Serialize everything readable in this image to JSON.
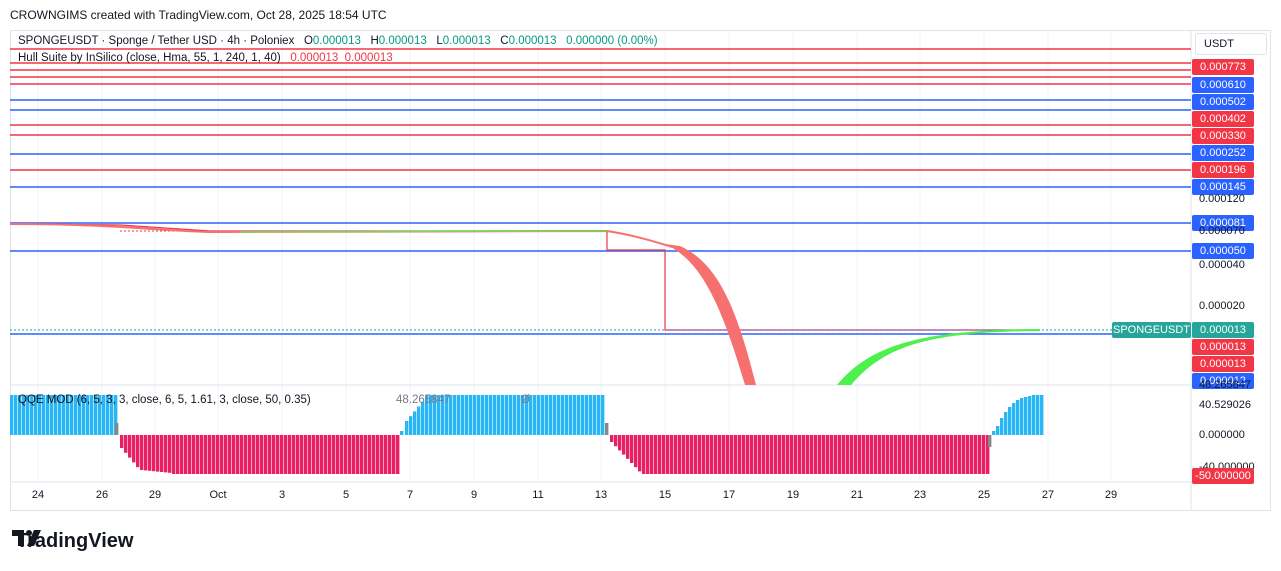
{
  "header": {
    "title": "CROWNGIMS created with TradingView.com, Oct 28, 2025 18:54 UTC"
  },
  "legend": {
    "symbol_line": "SPONGEUSDT · Sponge / Tether USD · 4h · Poloniex",
    "o_label": "O",
    "o_value": "0.000013",
    "h_label": "H",
    "h_value": "0.000013",
    "l_label": "L",
    "l_value": "0.000013",
    "c_label": "C",
    "c_value": "0.000013",
    "change": "0.000000 (0.00%)",
    "hull_line": "Hull Suite by InSilico (close, Hma, 55, 1, 240, 1, 40)",
    "hull_v1": "0.000013",
    "hull_v2": "0.000013",
    "qqe_line": "QQE MOD (6, 5, 3, 3, close, 6, 5, 1.61, 3, close, 50, 0.35)",
    "qqe_value": "48.265847",
    "qqe_zero": "Ø"
  },
  "currency_box": "USDT",
  "colors": {
    "red": "#f23645",
    "blue": "#2962ff",
    "green_hull": "#4ef04e",
    "red_hull": "#f77070",
    "cyan": "#29b6f6",
    "magenta": "#e91e63",
    "grey": "#888888",
    "teal": "#26a69a"
  },
  "price_labels": [
    {
      "text": "0.000773",
      "color": "#f23645"
    },
    {
      "text": "0.000610",
      "color": "#2962ff"
    },
    {
      "text": "0.000502",
      "color": "#2962ff"
    },
    {
      "text": "0.000402",
      "color": "#f23645"
    },
    {
      "text": "0.000330",
      "color": "#f23645"
    },
    {
      "text": "0.000252",
      "color": "#2962ff"
    },
    {
      "text": "0.000196",
      "color": "#f23645"
    },
    {
      "text": "0.000145",
      "color": "#2962ff"
    },
    {
      "text": "0.000081",
      "color": "#2962ff"
    },
    {
      "text": "0.000050",
      "color": "#2962ff"
    },
    {
      "text": "0.000013",
      "color": "#f23645"
    },
    {
      "text": "0.000013",
      "color": "#f23645"
    },
    {
      "text": "0.000012",
      "color": "#2962ff"
    }
  ],
  "price_ticks": [
    "0.000120",
    "0.000070",
    "0.000040",
    "0.000020"
  ],
  "symbol_price_label": {
    "symbol": "SPONGEUSDT",
    "price": "0.000013"
  },
  "qqe_ticks": {
    "top": "48.265847",
    "mid": "40.529026",
    "zero": "0.000000",
    "low": "-40.000000",
    "bottom_label": "-50.000000"
  },
  "x_ticks": [
    "24",
    "26",
    "29",
    "Oct",
    "3",
    "5",
    "7",
    "9",
    "11",
    "13",
    "15",
    "17",
    "19",
    "21",
    "23",
    "25",
    "27",
    "29"
  ],
  "brand": "TradingView",
  "chart_data": {
    "type": "line",
    "title": "SPONGEUSDT · Sponge / Tether USD · 4h · Poloniex",
    "y_axis": "log",
    "horizontal_levels": [
      0.000773,
      0.00061,
      0.000502,
      0.000402,
      0.00033,
      0.000252,
      0.000196,
      0.000145,
      8.1e-05,
      5e-05,
      1.3e-05,
      1.2e-05
    ],
    "series": [
      {
        "name": "SPONGEUSDT",
        "x": [
          "Sep 23",
          "Oct 13",
          "Oct 15",
          "Oct 25",
          "Oct 27"
        ],
        "values": [
          8.1e-05,
          7e-05,
          1.3e-05,
          1.3e-05,
          1.3e-05
        ]
      },
      {
        "name": "Hull Suite by InSilico",
        "x": [
          "Sep 23",
          "Sep 27",
          "Oct 13",
          "Oct 15",
          "Oct 17",
          "Oct 21",
          "Oct 25",
          "Oct 27"
        ],
        "values": [
          8.1e-05,
          7.2e-05,
          7e-05,
          5e-05,
          1e-05,
          9e-06,
          1.3e-05,
          1.3e-05
        ]
      }
    ],
    "qqe_histogram": {
      "positive_level": 48.265847,
      "negative_level": -40.0
    }
  }
}
